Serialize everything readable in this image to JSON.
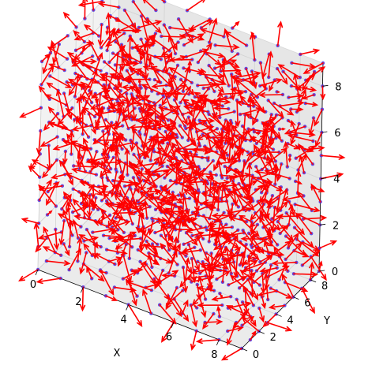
{
  "chart_data": {
    "type": "quiver3d",
    "title": "",
    "xlabel": "X",
    "ylabel": "Y",
    "zlabel": "",
    "xlim": [
      0,
      9
    ],
    "ylim": [
      0,
      9
    ],
    "zlim": [
      0,
      9
    ],
    "x_ticks": [
      "0",
      "2",
      "4",
      "6",
      "8"
    ],
    "y_ticks": [
      "0",
      "2",
      "4",
      "6",
      "8"
    ],
    "z_ticks": [
      "0",
      "2",
      "4",
      "6",
      "8"
    ],
    "grid": true,
    "points": {
      "grid_start": 0,
      "grid_end": 9,
      "grid_step": 1,
      "count": 1000,
      "color": "#4b2fe0"
    },
    "arrows": {
      "color": "#ff0000",
      "direction": "random unit vectors",
      "approx_length": 1
    },
    "pane_colors": {
      "x": "#f2f2f2",
      "y": "#e6e6e6",
      "z": "#ebebeb"
    }
  }
}
